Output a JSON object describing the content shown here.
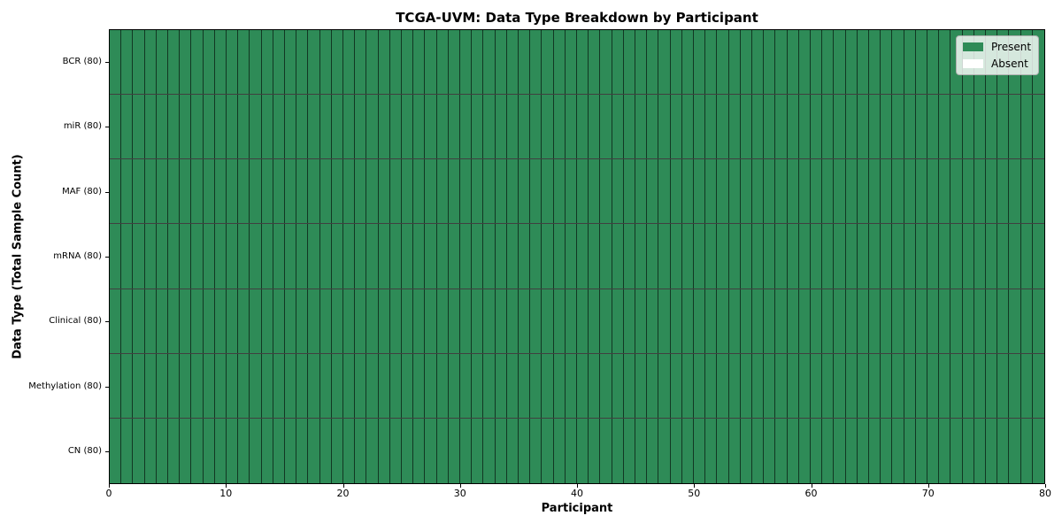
{
  "figure": {
    "background": "#ffffff"
  },
  "chart_data": {
    "type": "heatmap",
    "title": "TCGA-UVM: Data Type Breakdown by Participant",
    "xlabel": "Participant",
    "ylabel": "Data Type (Total Sample Count)",
    "xlim": [
      0,
      80
    ],
    "n_participants": 80,
    "x_ticks": [
      0,
      10,
      20,
      30,
      40,
      50,
      60,
      70,
      80
    ],
    "grid": true,
    "legend_position": "upper right",
    "rows": [
      {
        "label": "BCR (80)",
        "data_type": "BCR",
        "total_samples": 80,
        "present_count": 80,
        "absent_count": 0
      },
      {
        "label": "miR (80)",
        "data_type": "miR",
        "total_samples": 80,
        "present_count": 80,
        "absent_count": 0
      },
      {
        "label": "MAF (80)",
        "data_type": "MAF",
        "total_samples": 80,
        "present_count": 80,
        "absent_count": 0
      },
      {
        "label": "mRNA (80)",
        "data_type": "mRNA",
        "total_samples": 80,
        "present_count": 80,
        "absent_count": 0
      },
      {
        "label": "Clinical (80)",
        "data_type": "Clinical",
        "total_samples": 80,
        "present_count": 80,
        "absent_count": 0
      },
      {
        "label": "Methylation (80)",
        "data_type": "Methylation",
        "total_samples": 80,
        "present_count": 80,
        "absent_count": 0
      },
      {
        "label": "CN (80)",
        "data_type": "CN",
        "total_samples": 80,
        "present_count": 80,
        "absent_count": 0
      }
    ],
    "statuses": {
      "present": {
        "label": "Present",
        "color": "#2e8b57"
      },
      "absent": {
        "label": "Absent",
        "color": "#ffffff"
      }
    },
    "legend": [
      {
        "label": "Present",
        "color": "#2e8b57"
      },
      {
        "label": "Absent",
        "color": "#ffffff"
      }
    ],
    "colors": {
      "cell_border": "rgba(0,0,0,0.60)",
      "row_border": "rgba(0,0,0,0.75)",
      "plot_border": "#000000",
      "legend_border": "#b0b0b0"
    }
  }
}
